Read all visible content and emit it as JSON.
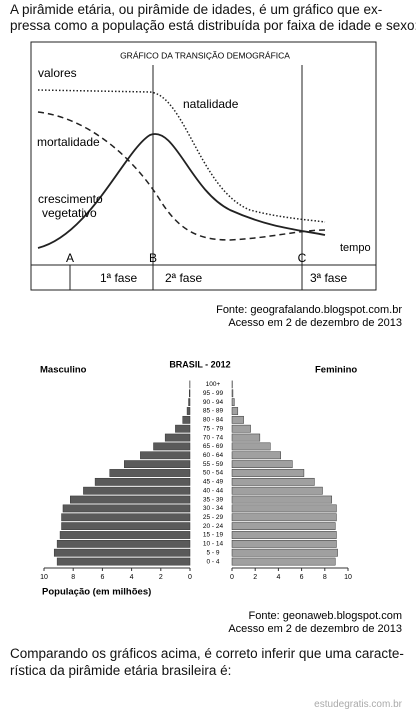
{
  "intro": {
    "lines": [
      "A pirâmide etária, ou pirâmide de idades, é um gráfico que ex-",
      "pressa como a população está distribuída por faixa de idade e sexo:"
    ]
  },
  "figure1": {
    "title": "GRÁFICO DA TRANSIÇÃO DEMOGRÁFICA",
    "labels": {
      "values": "valores",
      "birth": "natalidade",
      "death": "mortalidade",
      "growth": [
        "crescimento",
        "vegetativo"
      ],
      "time": "tempo"
    },
    "points": [
      "A",
      "B",
      "C"
    ],
    "phases": [
      "1ª fase",
      "2ª fase",
      "3ª fase"
    ]
  },
  "source1": {
    "lines": [
      "Fonte: geografalando.blogspot.com.br",
      "Acesso em 2 de dezembro de 2013"
    ]
  },
  "chart_data": {
    "type": "pyramid",
    "title": "BRASIL - 2012",
    "x_label": "População (em milhões)",
    "categories": [
      "0 - 4",
      "5 - 9",
      "10 - 14",
      "15 - 19",
      "20 - 24",
      "25 - 29",
      "30 - 34",
      "35 - 39",
      "40 - 44",
      "45 - 49",
      "50 - 54",
      "55 - 59",
      "60 - 64",
      "65 - 69",
      "70 - 74",
      "75 - 79",
      "80 - 84",
      "85 - 89",
      "90 - 94",
      "95 - 99",
      "100+"
    ],
    "series": [
      {
        "name": "Masculino",
        "color": "#5a5a5a",
        "values": [
          9.1,
          9.3,
          9.1,
          8.9,
          8.8,
          8.8,
          8.7,
          8.2,
          7.3,
          6.5,
          5.5,
          4.5,
          3.4,
          2.5,
          1.7,
          1.0,
          0.5,
          0.2,
          0.1,
          0.05,
          0.02
        ]
      },
      {
        "name": "Feminino",
        "color": "#a0a0a0",
        "values": [
          8.9,
          9.1,
          9.0,
          9.0,
          8.9,
          9.0,
          9.0,
          8.6,
          7.8,
          7.1,
          6.2,
          5.2,
          4.2,
          3.3,
          2.4,
          1.6,
          1.0,
          0.5,
          0.2,
          0.08,
          0.03
        ]
      }
    ],
    "xlim": [
      0,
      10
    ],
    "xticks": [
      0,
      2,
      4,
      6,
      8,
      10
    ]
  },
  "source2": {
    "lines": [
      "Fonte: geonaweb.blogspot.com",
      "Acesso em 2 de dezembro de 2013"
    ]
  },
  "question": {
    "lines": [
      "Comparando os gráficos acima, é correto inferir que uma caracte-",
      "rística da pirâmide etária brasileira é:"
    ]
  },
  "watermark": "estudegratis.com.br"
}
